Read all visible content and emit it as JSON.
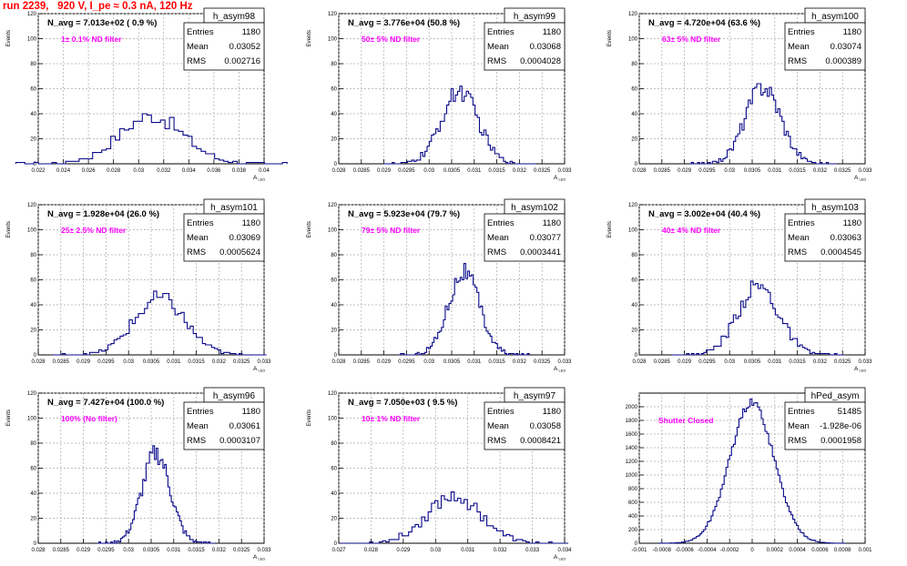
{
  "run_title": "run 2239,   920 V, I_pe ≈ 0.3 nA, 120 Hz",
  "chart_data": [
    {
      "type": "histogram",
      "name": "h_asym98",
      "n_avg": "N_avg = 7.013e+02 ( 0.9 %)",
      "filter_label": "1± 0.1% ND filter",
      "stats": {
        "Entries": "1180",
        "Mean": "0.03052",
        "RMS": "0.002716"
      },
      "xlabel": "A_LED",
      "ylabel": "Events",
      "xlim": [
        0.021,
        0.04
      ],
      "ylim": [
        0,
        120
      ],
      "xticks": [
        "0.022",
        "0.024",
        "0.026",
        "0.028",
        "0.03",
        "0.032",
        "0.034",
        "0.036",
        "0.038",
        "0.04"
      ],
      "yticks": [
        "0",
        "20",
        "40",
        "60",
        "80",
        "100",
        "120"
      ],
      "mean": 0.03052,
      "rms": 0.002716,
      "peak": 38,
      "bins": 60
    },
    {
      "type": "histogram",
      "name": "h_asym99",
      "n_avg": "N_avg = 3.776e+04 (50.8 %)",
      "filter_label": "50± 5% ND filter",
      "stats": {
        "Entries": "1180",
        "Mean": "0.03068",
        "RMS": "0.0004028"
      },
      "xlabel": "A_LED",
      "ylabel": "Events",
      "xlim": [
        0.028,
        0.033
      ],
      "ylim": [
        0,
        120
      ],
      "xticks": [
        "0.028",
        "0.0285",
        "0.029",
        "0.0295",
        "0.03",
        "0.0305",
        "0.031",
        "0.0315",
        "0.032",
        "0.0325",
        "0.033"
      ],
      "yticks": [
        "0",
        "20",
        "40",
        "60",
        "80",
        "100",
        "120"
      ],
      "mean": 0.03068,
      "rms": 0.0004028,
      "peak": 58,
      "bins": 70
    },
    {
      "type": "histogram",
      "name": "h_asym100",
      "n_avg": "N_avg = 4.720e+04 (63.6 %)",
      "filter_label": "63± 5% ND filter",
      "stats": {
        "Entries": "1180",
        "Mean": "0.03074",
        "RMS": "0.000389"
      },
      "xlabel": "A_LED",
      "ylabel": "Events",
      "xlim": [
        0.028,
        0.033
      ],
      "ylim": [
        0,
        120
      ],
      "xticks": [
        "0.028",
        "0.0285",
        "0.029",
        "0.0295",
        "0.03",
        "0.0305",
        "0.031",
        "0.0315",
        "0.032",
        "0.0325",
        "0.033"
      ],
      "yticks": [
        "0",
        "20",
        "40",
        "60",
        "80",
        "100",
        "120"
      ],
      "mean": 0.03074,
      "rms": 0.000389,
      "peak": 62,
      "bins": 70
    },
    {
      "type": "histogram",
      "name": "h_asym101",
      "n_avg": "N_avg = 1.928e+04 (26.0 %)",
      "filter_label": "25± 2.5% ND filter",
      "stats": {
        "Entries": "1180",
        "Mean": "0.03069",
        "RMS": "0.0005624"
      },
      "xlabel": "A_LED",
      "ylabel": "Events",
      "xlim": [
        0.028,
        0.033
      ],
      "ylim": [
        0,
        120
      ],
      "xticks": [
        "0.028",
        "0.0285",
        "0.029",
        "0.0295",
        "0.03",
        "0.0305",
        "0.031",
        "0.0315",
        "0.032",
        "0.0325",
        "0.033"
      ],
      "yticks": [
        "0",
        "20",
        "40",
        "60",
        "80",
        "100",
        "120"
      ],
      "mean": 0.03069,
      "rms": 0.0005624,
      "peak": 45,
      "bins": 70
    },
    {
      "type": "histogram",
      "name": "h_asym102",
      "n_avg": "N_avg = 5.923e+04 (79.7 %)",
      "filter_label": "79± 5% ND filter",
      "stats": {
        "Entries": "1180",
        "Mean": "0.03077",
        "RMS": "0.0003441"
      },
      "xlabel": "A_LED",
      "ylabel": "Events",
      "xlim": [
        0.028,
        0.033
      ],
      "ylim": [
        0,
        120
      ],
      "xticks": [
        "0.028",
        "0.0285",
        "0.029",
        "0.0295",
        "0.03",
        "0.0305",
        "0.031",
        "0.0315",
        "0.032",
        "0.0325",
        "0.033"
      ],
      "yticks": [
        "0",
        "20",
        "40",
        "60",
        "80",
        "100",
        "120"
      ],
      "mean": 0.03077,
      "rms": 0.0003441,
      "peak": 66,
      "bins": 70
    },
    {
      "type": "histogram",
      "name": "h_asym103",
      "n_avg": "N_avg = 3.002e+04 (40.4 %)",
      "filter_label": "40± 4% ND filter",
      "stats": {
        "Entries": "1180",
        "Mean": "0.03063",
        "RMS": "0.0004545"
      },
      "xlabel": "A_LED",
      "ylabel": "Events",
      "xlim": [
        0.028,
        0.033
      ],
      "ylim": [
        0,
        120
      ],
      "xticks": [
        "0.028",
        "0.0285",
        "0.029",
        "0.0295",
        "0.03",
        "0.0305",
        "0.031",
        "0.0315",
        "0.032",
        "0.0325",
        "0.033"
      ],
      "yticks": [
        "0",
        "20",
        "40",
        "60",
        "80",
        "100",
        "120"
      ],
      "mean": 0.03063,
      "rms": 0.0004545,
      "peak": 55,
      "bins": 70
    },
    {
      "type": "histogram",
      "name": "h_asym96",
      "n_avg": "N_avg = 7.427e+04 (100.0 %)",
      "filter_label": "100% (No filter)",
      "stats": {
        "Entries": "1180",
        "Mean": "0.03061",
        "RMS": "0.0003107"
      },
      "xlabel": "A_LED",
      "ylabel": "Events",
      "xlim": [
        0.028,
        0.033
      ],
      "ylim": [
        0,
        120
      ],
      "xticks": [
        "0.028",
        "0.0285",
        "0.029",
        "0.0295",
        "0.03",
        "0.0305",
        "0.031",
        "0.0315",
        "0.032",
        "0.0325",
        "0.033"
      ],
      "yticks": [
        "0",
        "20",
        "40",
        "60",
        "80",
        "100",
        "120"
      ],
      "mean": 0.03061,
      "rms": 0.0003107,
      "peak": 72,
      "bins": 70
    },
    {
      "type": "histogram",
      "name": "h_asym97",
      "n_avg": "N_avg = 7.050e+03 ( 9.5 %)",
      "filter_label": "10± 1% ND filter",
      "stats": {
        "Entries": "1180",
        "Mean": "0.03058",
        "RMS": "0.0008421"
      },
      "xlabel": "A_LED",
      "ylabel": "Events",
      "xlim": [
        0.027,
        0.034
      ],
      "ylim": [
        0,
        120
      ],
      "xticks": [
        "0.027",
        "0.028",
        "0.029",
        "0.03",
        "0.031",
        "0.032",
        "0.033",
        "0.034"
      ],
      "yticks": [
        "0",
        "20",
        "40",
        "60",
        "80",
        "100",
        "120"
      ],
      "mean": 0.03058,
      "rms": 0.0008421,
      "peak": 38,
      "bins": 70
    },
    {
      "type": "histogram",
      "name": "hPed_asym",
      "n_avg": "",
      "filter_label": "Shutter Closed",
      "stats": {
        "Entries": "51485",
        "Mean": "-1.928e-06",
        "RMS": "0.0001958"
      },
      "xlabel": "",
      "ylabel": "",
      "xlim": [
        -0.001,
        0.001
      ],
      "ylim": [
        0,
        2200
      ],
      "xticks": [
        "-0.001",
        "-0.0008",
        "-0.0006",
        "-0.0004",
        "-0.0002",
        "0",
        "0.0002",
        "0.0004",
        "0.0006",
        "0.0008",
        "0.001"
      ],
      "yticks": [
        "0",
        "200",
        "400",
        "600",
        "800",
        "1000",
        "1200",
        "1400",
        "1600",
        "1800",
        "2000"
      ],
      "mean": -1.928e-06,
      "rms": 0.0001958,
      "peak": 2060,
      "bins": 100
    }
  ]
}
